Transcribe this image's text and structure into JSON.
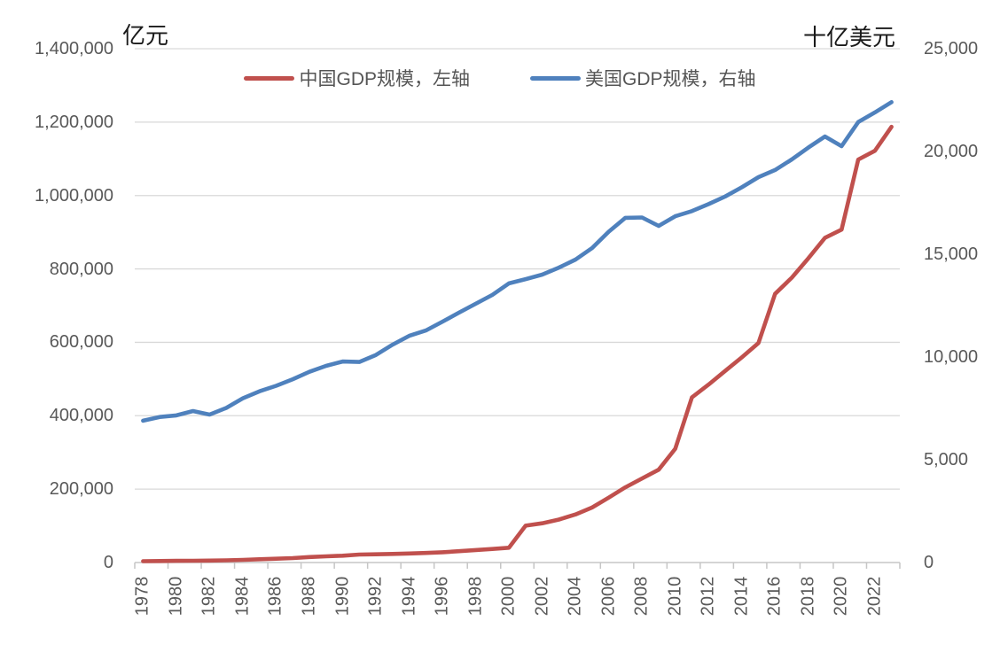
{
  "chart": {
    "left_axis_title": "亿元",
    "right_axis_title": "十亿美元"
  },
  "chart_data": {
    "type": "line",
    "grid": true,
    "legend_position": "top-center",
    "x": [
      1978,
      1979,
      1980,
      1981,
      1982,
      1983,
      1984,
      1985,
      1986,
      1987,
      1988,
      1989,
      1990,
      1991,
      1992,
      1993,
      1994,
      1995,
      1996,
      1997,
      1998,
      1999,
      2000,
      2001,
      2002,
      2003,
      2004,
      2005,
      2006,
      2007,
      2008,
      2009,
      2010,
      2011,
      2012,
      2013,
      2014,
      2015,
      2016,
      2017,
      2018,
      2019,
      2020,
      2021,
      2022,
      2023
    ],
    "x_tick_labels": [
      "1978",
      "1980",
      "1982",
      "1984",
      "1986",
      "1988",
      "1990",
      "1992",
      "1994",
      "1996",
      "1998",
      "2000",
      "2002",
      "2004",
      "2006",
      "2008",
      "2010",
      "2012",
      "2014",
      "2016",
      "2018",
      "2020",
      "2022"
    ],
    "left_axis": {
      "title": "亿元",
      "min": 0,
      "max": 1400000,
      "step": 200000,
      "tick_labels": [
        "0",
        "200,000",
        "400,000",
        "600,000",
        "800,000",
        "1,000,000",
        "1,200,000",
        "1,400,000"
      ]
    },
    "right_axis": {
      "title": "十亿美元",
      "min": 0,
      "max": 25000,
      "step": 5000,
      "tick_labels": [
        "0",
        "5,000",
        "10,000",
        "15,000",
        "20,000",
        "25,000"
      ]
    },
    "series": [
      {
        "name": "中国GDP规模，左轴",
        "axis": "left",
        "color": "#C0504D",
        "values": [
          3600,
          4100,
          4600,
          4900,
          5300,
          6000,
          7200,
          9000,
          10300,
          12100,
          15000,
          17000,
          18700,
          21700,
          22500,
          23400,
          24700,
          26000,
          28000,
          31000,
          34000,
          37000,
          40300,
          100500,
          107000,
          117000,
          131000,
          150000,
          177000,
          205000,
          229000,
          253000,
          310000,
          450000,
          485000,
          522000,
          559000,
          598000,
          732000,
          776000,
          829000,
          885000,
          907000,
          1098000,
          1122000,
          1187000
        ]
      },
      {
        "name": "美国GDP规模，右轴",
        "axis": "right",
        "color": "#4F81BD",
        "values": [
          6900,
          7080,
          7160,
          7370,
          7200,
          7520,
          7990,
          8330,
          8600,
          8920,
          9280,
          9570,
          9780,
          9760,
          10100,
          10600,
          11030,
          11290,
          11720,
          12160,
          12590,
          13020,
          13580,
          13790,
          14010,
          14350,
          14740,
          15300,
          16100,
          16770,
          16790,
          16380,
          16850,
          17100,
          17440,
          17810,
          18260,
          18750,
          19100,
          19610,
          20190,
          20730,
          20260,
          21430,
          21900,
          22400
        ]
      }
    ],
    "colors": {
      "gridline": "#D9D9D9",
      "axis_line": "#C6C6C6",
      "tick_mark": "#C6C6C6",
      "tick_text": "#595959",
      "title_text": "#1A1A1A"
    }
  }
}
